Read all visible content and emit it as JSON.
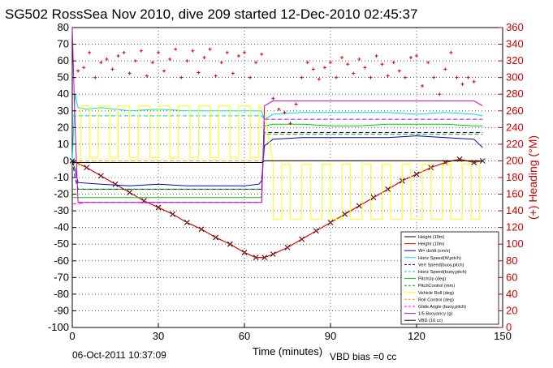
{
  "chart_data": {
    "type": "line",
    "title": "SG502 RossSea Nov 2010, dive 209 started 12-Dec-2010 02:45:37",
    "xlabel": "Time (minutes)",
    "ylabel_right": "(+) Heading (°M)",
    "xlim": [
      0,
      150
    ],
    "ylim": [
      -100,
      80
    ],
    "ylim_right": [
      0,
      360
    ],
    "xticks": [
      "0",
      "30",
      "60",
      "90",
      "120",
      "150"
    ],
    "yticks": [
      "80",
      "70",
      "60",
      "50",
      "40",
      "30",
      "20",
      "10",
      "0",
      "-10",
      "-20",
      "-30",
      "-40",
      "-50",
      "-60",
      "-70",
      "-80",
      "-90",
      "-100"
    ],
    "yticks_right": [
      "360",
      "340",
      "320",
      "300",
      "280",
      "260",
      "240",
      "220",
      "200",
      "180",
      "160",
      "140",
      "120",
      "100",
      "80",
      "60",
      "40",
      "20",
      "0"
    ],
    "grid": true,
    "legend_position": "lower-right",
    "footer_left": "06-Oct-2011 10:37:09",
    "footer_right": "VBD bias =0 cc",
    "series": [
      {
        "name": "Height (10m)",
        "color": "#000000",
        "style": "solid",
        "marker": "x",
        "x": [
          0,
          5,
          10,
          15,
          20,
          25,
          30,
          35,
          40,
          45,
          50,
          55,
          60,
          64,
          67,
          70,
          75,
          80,
          85,
          90,
          95,
          100,
          105,
          110,
          115,
          120,
          125,
          130,
          135,
          140,
          143
        ],
        "y": [
          0,
          -4,
          -9,
          -14,
          -19,
          -24,
          -28,
          -32,
          -37,
          -41,
          -46,
          -50,
          -55,
          -58,
          -58,
          -56,
          -52,
          -47,
          -42,
          -37,
          -32,
          -27,
          -22,
          -17,
          -12,
          -8,
          -4,
          -1,
          1,
          -1,
          0
        ]
      },
      {
        "name": "Height (10m)",
        "color": "#ff0000",
        "style": "solid",
        "x": [
          0,
          5,
          10,
          15,
          20,
          25,
          30,
          35,
          40,
          45,
          50,
          55,
          60,
          64,
          67,
          70,
          75,
          80,
          85,
          90,
          95,
          100,
          105,
          110,
          115,
          120,
          125,
          130,
          135,
          140,
          143
        ],
        "y": [
          0,
          -4,
          -9,
          -14,
          -19,
          -24,
          -28,
          -32,
          -37,
          -41,
          -46,
          -50,
          -55,
          -58,
          -58,
          -56,
          -52,
          -47,
          -42,
          -37,
          -32,
          -27,
          -22,
          -17,
          -12,
          -8,
          -4,
          -1,
          1,
          -1,
          0
        ]
      },
      {
        "name": "W= dz/dt (cm/s)",
        "color": "#0000cc",
        "style": "solid",
        "x": [
          0,
          1,
          2,
          10,
          20,
          30,
          40,
          50,
          60,
          65,
          66,
          67,
          70,
          80,
          90,
          100,
          110,
          120,
          130,
          140,
          143
        ],
        "y": [
          0,
          -5,
          -13,
          -14,
          -15,
          -14,
          -15,
          -15,
          -15,
          -14,
          -12,
          9,
          13,
          14,
          14,
          14,
          14,
          15,
          14,
          13,
          8
        ]
      },
      {
        "name": "Horiz Speed(W,pitch)",
        "color": "#00dddd",
        "style": "solid",
        "x": [
          0,
          1,
          2,
          5,
          10,
          20,
          30,
          40,
          50,
          60,
          65,
          66,
          67,
          70,
          80,
          90,
          100,
          110,
          120,
          130,
          140,
          143
        ],
        "y": [
          0,
          40,
          32,
          31,
          32,
          30,
          31,
          30,
          30,
          30,
          30,
          30,
          25,
          28,
          29,
          29,
          29,
          29,
          28,
          29,
          28,
          27
        ]
      },
      {
        "name": "Vert Speed(buoy,pitch)",
        "color": "#000088",
        "style": "dash",
        "x": [
          0,
          1,
          2,
          10,
          20,
          30,
          40,
          50,
          60,
          65,
          66,
          67,
          70,
          80,
          90,
          100,
          110,
          120,
          130,
          140,
          143
        ],
        "y": [
          0,
          -10,
          -17,
          -17,
          -17,
          -17,
          -17,
          -17,
          -17,
          -17,
          -17,
          17,
          17,
          17,
          17,
          17,
          17,
          17,
          17,
          17,
          17
        ]
      },
      {
        "name": "Horiz Speed(buoy,pitch)",
        "color": "#00cccc",
        "style": "dash",
        "x": [
          0,
          2,
          10,
          20,
          30,
          40,
          50,
          60,
          65,
          66,
          67,
          70,
          80,
          90,
          100,
          110,
          120,
          130,
          140,
          143
        ],
        "y": [
          27,
          27,
          27,
          27,
          27,
          27,
          27,
          27,
          27,
          27,
          25,
          25,
          25,
          25,
          25,
          25,
          25,
          25,
          25,
          25
        ]
      },
      {
        "name": "PitchUp (deg)",
        "color": "#00cc00",
        "style": "solid",
        "x": [
          0,
          2,
          10,
          20,
          30,
          40,
          50,
          60,
          65,
          66,
          67,
          70,
          80,
          90,
          100,
          110,
          120,
          130,
          140,
          143
        ],
        "y": [
          -22,
          -22,
          -22,
          -22,
          -22,
          -22,
          -22,
          -22,
          -22,
          -22,
          21,
          22,
          22,
          21,
          21,
          22,
          22,
          22,
          21,
          21
        ]
      },
      {
        "name": "PitchControl (mm)",
        "color": "#00aa00",
        "style": "dash",
        "x": [
          0,
          5,
          10,
          20,
          30,
          40,
          50,
          60,
          65,
          66,
          67,
          70,
          80,
          90,
          100,
          110,
          120,
          130,
          140,
          143
        ],
        "y": [
          -17,
          -17,
          -17,
          -17,
          -17,
          -17,
          -17,
          -17,
          -17,
          -17,
          16,
          16,
          16,
          16,
          16,
          16,
          16,
          16,
          16,
          16
        ]
      },
      {
        "name": "Vehicle Roll (deg)",
        "color": "#ffff00",
        "style": "solid",
        "x": [
          0,
          3,
          3,
          6,
          6,
          9,
          9,
          13,
          13,
          16,
          16,
          20,
          20,
          23,
          23,
          27,
          27,
          30,
          30,
          34,
          34,
          37,
          37,
          41,
          41,
          44,
          44,
          48,
          48,
          51,
          51,
          55,
          55,
          58,
          58,
          62,
          62,
          65,
          65,
          67,
          70,
          70,
          73,
          73,
          76,
          76,
          80,
          80,
          83,
          83,
          87,
          87,
          90,
          90,
          94,
          94,
          97,
          97,
          101,
          101,
          104,
          104,
          108,
          108,
          111,
          111,
          115,
          115,
          118,
          118,
          122,
          122,
          125,
          125,
          129,
          129,
          132,
          132,
          136,
          136,
          139,
          139,
          142,
          142
        ],
        "y": [
          -3,
          -3,
          33,
          33,
          2,
          2,
          33,
          33,
          2,
          2,
          33,
          33,
          2,
          2,
          33,
          33,
          2,
          2,
          33,
          33,
          2,
          2,
          33,
          33,
          2,
          2,
          33,
          33,
          2,
          2,
          33,
          33,
          2,
          2,
          33,
          33,
          2,
          2,
          33,
          30,
          -2,
          -35,
          -35,
          -2,
          -2,
          -35,
          -35,
          -2,
          -2,
          -35,
          -35,
          -2,
          -2,
          -35,
          -35,
          -2,
          -2,
          -35,
          -35,
          -2,
          -2,
          -35,
          -35,
          -2,
          -2,
          -35,
          -35,
          -2,
          -2,
          -35,
          -35,
          -2,
          -2,
          -35,
          -35,
          -2,
          -2,
          -35,
          -35,
          -2,
          -2,
          -35,
          -35,
          -2
        ]
      },
      {
        "name": "Roll Control (deg)",
        "color": "#ffaa00",
        "style": "dash",
        "x": [
          0,
          66,
          67,
          143
        ],
        "y": [
          0,
          0,
          0,
          0
        ]
      },
      {
        "name": "Glide Angle (buoy,pitch)",
        "color": "#ff00ff",
        "style": "dash",
        "x": [
          0,
          5,
          10,
          20,
          30,
          40,
          50,
          60,
          65,
          66,
          67,
          70,
          80,
          90,
          100,
          110,
          120,
          130,
          140,
          143
        ],
        "y": [
          -26,
          -25,
          -25,
          -25,
          -25,
          -25,
          -25,
          -25,
          -25,
          -25,
          25,
          25,
          25,
          25,
          25,
          25,
          25,
          25,
          25,
          25
        ]
      },
      {
        "name": "1/5 Buoyancy (g)",
        "color": "#cc00cc",
        "style": "solid",
        "x": [
          0,
          1,
          2,
          10,
          20,
          30,
          40,
          50,
          60,
          65,
          66,
          67,
          70,
          80,
          90,
          100,
          110,
          120,
          130,
          140,
          143
        ],
        "y": [
          80,
          20,
          -25,
          -25,
          -25,
          -25,
          -25,
          -25,
          -25,
          -25,
          -25,
          33,
          36,
          36,
          36,
          36,
          36,
          36,
          36,
          36,
          33
        ]
      },
      {
        "name": "VBD (10 cc)",
        "color": "#000000",
        "style": "solid",
        "x": [
          0,
          66,
          67,
          143
        ],
        "y": [
          -1,
          -1,
          0,
          0
        ]
      }
    ],
    "heading_series": {
      "name": "(+) Heading (°M)",
      "color": "#dd0000",
      "style": "marker",
      "x": [
        2,
        4,
        6,
        8,
        10,
        12,
        14,
        16,
        18,
        20,
        22,
        24,
        26,
        28,
        30,
        32,
        34,
        36,
        38,
        40,
        42,
        44,
        46,
        48,
        50,
        52,
        54,
        56,
        58,
        60,
        62,
        64,
        66,
        70,
        72,
        74,
        76,
        78,
        80,
        82,
        84,
        86,
        88,
        90,
        92,
        94,
        96,
        98,
        100,
        102,
        104,
        106,
        108,
        110,
        112,
        114,
        116,
        118,
        120,
        122,
        124,
        126,
        128,
        130,
        132,
        134,
        136,
        138,
        140
      ],
      "y": [
        308,
        312,
        330,
        300,
        318,
        322,
        310,
        326,
        330,
        305,
        320,
        332,
        302,
        318,
        330,
        308,
        322,
        334,
        300,
        320,
        332,
        306,
        324,
        334,
        302,
        318,
        330,
        305,
        326,
        330,
        300,
        318,
        328,
        275,
        262,
        258,
        245,
        268,
        300,
        318,
        310,
        298,
        312,
        318,
        300,
        324,
        316,
        305,
        322,
        312,
        300,
        326,
        316,
        302,
        318,
        308,
        300,
        324,
        326,
        290,
        318,
        300,
        280,
        310,
        330,
        300,
        292,
        300,
        295
      ]
    }
  }
}
